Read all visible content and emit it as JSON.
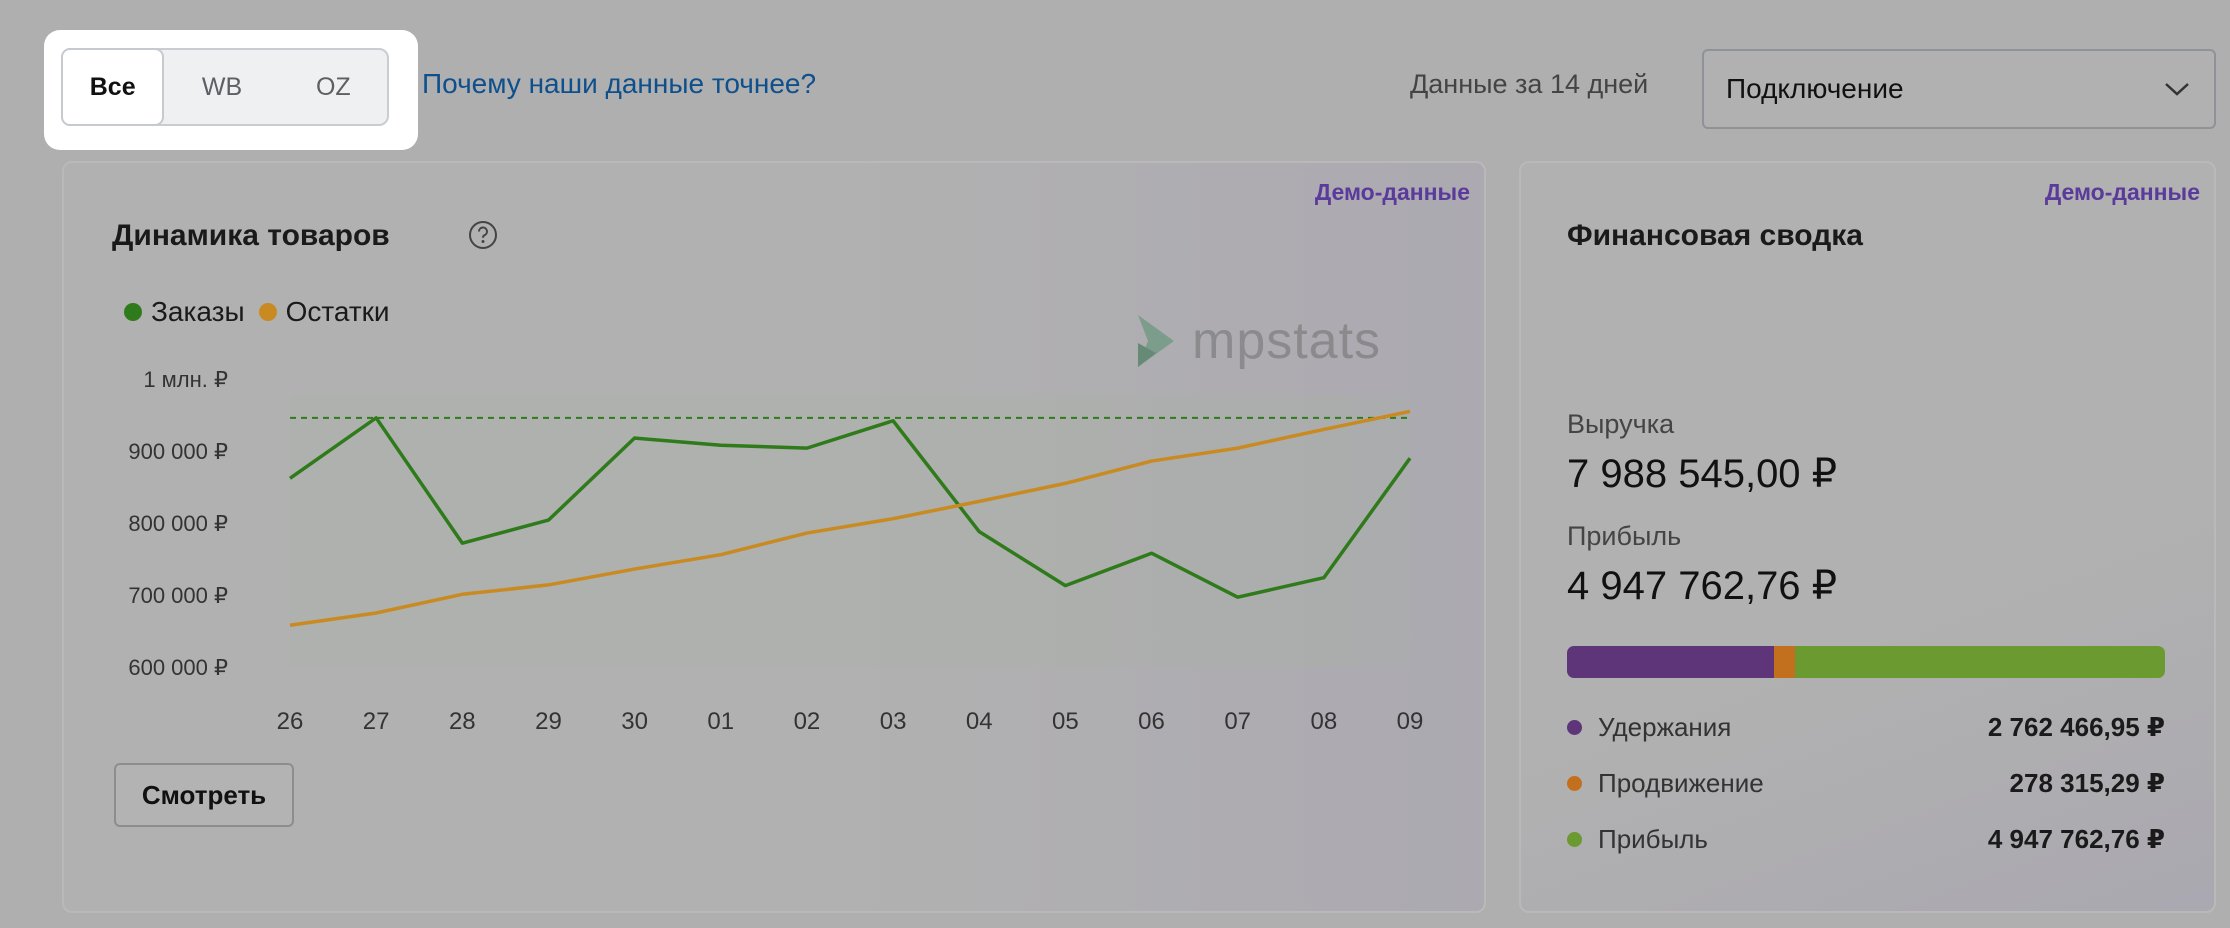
{
  "filters": {
    "tabs": [
      "Все",
      "WB",
      "OZ"
    ],
    "active_tab": "Все",
    "why_link": "Почему наши данные точнее?",
    "period_label": "Данные за 14 дней",
    "select_value": "Подключение"
  },
  "dynamics_card": {
    "title": "Динамика товаров",
    "demo_badge": "Демо-данные",
    "view_button": "Смотреть",
    "watermark": "mpstats"
  },
  "chart_data": {
    "type": "line",
    "x": [
      "26",
      "27",
      "28",
      "29",
      "30",
      "01",
      "02",
      "03",
      "04",
      "05",
      "06",
      "07",
      "08",
      "09"
    ],
    "y_ticks": [
      "1 млн. ₽",
      "900 000 ₽",
      "800 000 ₽",
      "700 000 ₽",
      "600 000 ₽"
    ],
    "ylim": [
      600000,
      1000000
    ],
    "series": [
      {
        "name": "Заказы",
        "color": "#2f7a1a",
        "values": [
          862000,
          946000,
          772000,
          804000,
          918000,
          908000,
          904000,
          942000,
          788000,
          713000,
          758000,
          697000,
          724000,
          890000
        ]
      },
      {
        "name": "Остатки",
        "color": "#c98a22",
        "values": [
          658000,
          675000,
          701000,
          714000,
          736000,
          756000,
          786000,
          806000,
          830000,
          855000,
          886000,
          904000,
          930000,
          955000
        ]
      }
    ],
    "reference_line": 946000,
    "grid": false
  },
  "finance_card": {
    "title": "Финансовая сводка",
    "demo_badge": "Демо-данные",
    "revenue_label": "Выручка",
    "revenue_value": "7 988 545,00 ₽",
    "profit_label": "Прибыль",
    "profit_value": "4 947 762,76 ₽",
    "breakdown": [
      {
        "name": "Удержания",
        "value": "2 762 466,95 ₽",
        "color": "#5e3578",
        "amount": 2762466.95
      },
      {
        "name": "Продвижение",
        "value": "278 315,29 ₽",
        "color": "#c2701e",
        "amount": 278315.29
      },
      {
        "name": "Прибыль",
        "value": "4 947 762,76 ₽",
        "color": "#6a9a30",
        "amount": 4947762.76
      }
    ]
  }
}
